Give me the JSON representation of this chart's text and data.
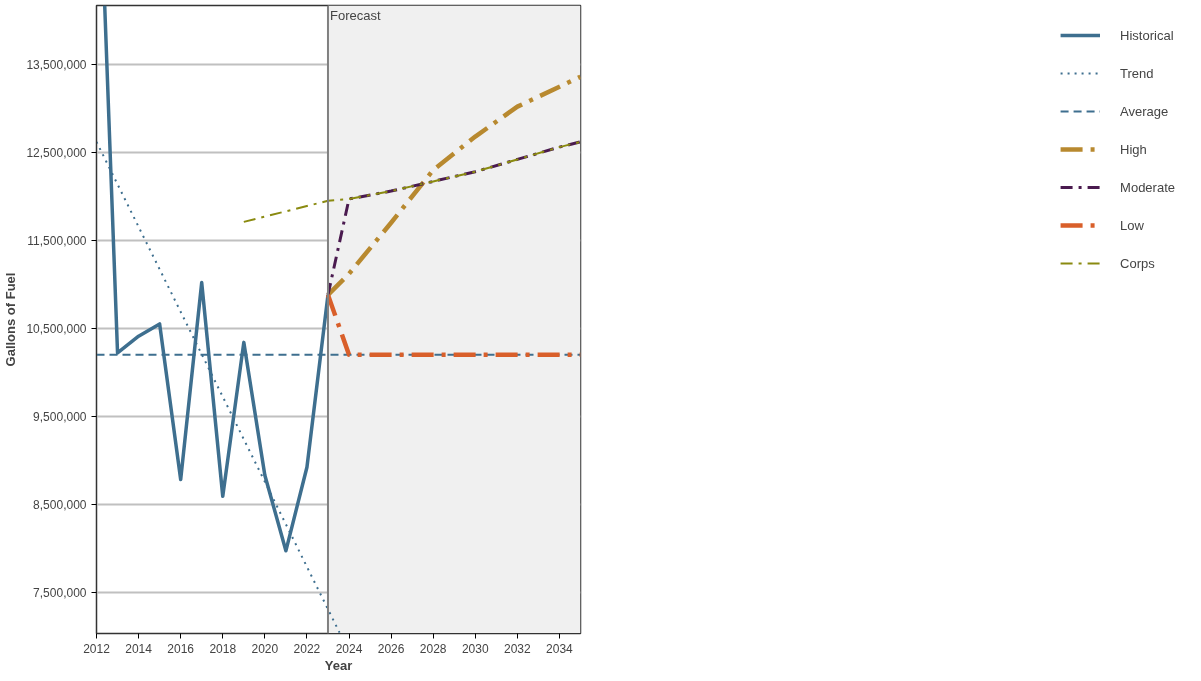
{
  "chart_data": {
    "type": "line",
    "xlabel": "Year",
    "ylabel": "Gallons of Fuel",
    "xlim": [
      2012,
      2035
    ],
    "ylim": [
      7030000,
      14170000
    ],
    "xticks": [
      2012,
      2014,
      2016,
      2018,
      2020,
      2022,
      2024,
      2026,
      2028,
      2030,
      2032,
      2034
    ],
    "yticks": [
      {
        "value": 7500000,
        "label": "7,500,000"
      },
      {
        "value": 8500000,
        "label": "8,500,000"
      },
      {
        "value": 9500000,
        "label": "9,500,000"
      },
      {
        "value": 10500000,
        "label": "10,500,000"
      },
      {
        "value": 11500000,
        "label": "11,500,000"
      },
      {
        "value": 12500000,
        "label": "12,500,000"
      },
      {
        "value": 13500000,
        "label": "13,500,000"
      }
    ],
    "grid": "y",
    "legend": "right",
    "series": [
      {
        "name": "Historical",
        "color": "#3e6f8f",
        "line_style": "solid",
        "x": [
          2012.39,
          2013,
          2014,
          2015,
          2016,
          2017,
          2018,
          2019,
          2020,
          2021,
          2022,
          2023
        ],
        "values": [
          14170000,
          10220000,
          10410000,
          10550000,
          8780000,
          11020000,
          8590000,
          10340000,
          8830000,
          7970000,
          8920000,
          10880000
        ]
      },
      {
        "name": "Trend",
        "color": "#3e6f8f",
        "line_style": "dotted",
        "x": [
          2012,
          2023.55
        ],
        "values": [
          12620000,
          7040000
        ]
      },
      {
        "name": "Average",
        "color": "#3e6f8f",
        "line_style": "dashed",
        "x": [
          2012,
          2035
        ],
        "values": [
          10200000,
          10200000
        ]
      },
      {
        "name": "High",
        "color": "#b8892f",
        "line_style": "longdashdot",
        "x": [
          2023,
          2024,
          2026,
          2028,
          2030,
          2032,
          2035
        ],
        "values": [
          10880000,
          11120000,
          11700000,
          12300000,
          12680000,
          13020000,
          13360000
        ]
      },
      {
        "name": "Moderate",
        "color": "#4a1a4f",
        "line_style": "dashdot",
        "x": [
          2023,
          2024,
          2026,
          2028,
          2030,
          2032,
          2034,
          2035
        ],
        "values": [
          10880000,
          11970000,
          12060000,
          12170000,
          12280000,
          12420000,
          12560000,
          12620000
        ]
      },
      {
        "name": "Low",
        "color": "#d95f2a",
        "line_style": "longdashdot",
        "x": [
          2023,
          2024,
          2035
        ],
        "values": [
          10880000,
          10200000,
          10200000
        ]
      },
      {
        "name": "Corps",
        "color": "#8a8a10",
        "line_style": "dashdot",
        "x": [
          2019,
          2021,
          2023,
          2024,
          2026,
          2028,
          2030,
          2032,
          2034,
          2035
        ],
        "values": [
          11710000,
          11830000,
          11950000,
          11970000,
          12060000,
          12170000,
          12280000,
          12420000,
          12560000,
          12620000
        ]
      }
    ],
    "bands": [
      {
        "axis": "x",
        "from": 2023,
        "to": 2035,
        "color": "#f0f0f0"
      }
    ],
    "ref_lines": [
      {
        "axis": "x",
        "value": 2023,
        "label": "Forecast",
        "color": "#808080"
      }
    ]
  }
}
